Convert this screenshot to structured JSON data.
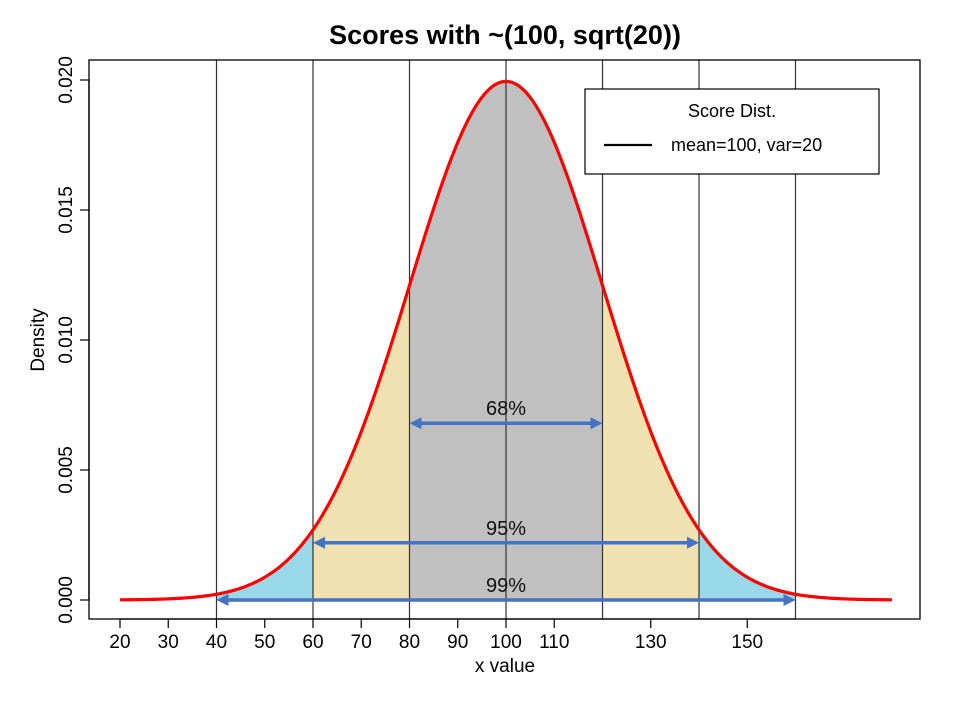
{
  "chart_data": {
    "type": "area",
    "title": "Scores with ~(100, sqrt(20))",
    "xlabel": "x value",
    "ylabel": "Density",
    "xlim": [
      20,
      180
    ],
    "ylim": [
      0,
      0.02
    ],
    "x_ticks": [
      20,
      30,
      40,
      50,
      60,
      70,
      80,
      90,
      100,
      110,
      130,
      150
    ],
    "y_ticks": [
      0.0,
      0.005,
      0.01,
      0.015,
      0.02
    ],
    "y_tick_labels": [
      "0.000",
      "0.005",
      "0.010",
      "0.015",
      "0.020"
    ],
    "vertical_lines": [
      40,
      60,
      80,
      100,
      120,
      140,
      160
    ],
    "grid": true,
    "curve": {
      "mean": 100,
      "sd": 20,
      "color": "#ff0000"
    },
    "series": [
      {
        "x": [
          20,
          30,
          40,
          50,
          60,
          70,
          80,
          90,
          100,
          110,
          120,
          130,
          140,
          150,
          160,
          170,
          180
        ],
        "values": [
          0.0001,
          0.0004,
          0.0009,
          0.0022,
          0.0027,
          0.0065,
          0.0121,
          0.0176,
          0.0199,
          0.0176,
          0.0121,
          0.0065,
          0.0027,
          0.0009,
          0.0002,
          0.0001,
          0.0001
        ]
      }
    ],
    "bands": [
      {
        "from": 40,
        "to": 60,
        "color": "#98d8e8"
      },
      {
        "from": 60,
        "to": 80,
        "color": "#f0e2b0"
      },
      {
        "from": 80,
        "to": 120,
        "color": "#c0c0c0"
      },
      {
        "from": 120,
        "to": 140,
        "color": "#f0e2b0"
      },
      {
        "from": 140,
        "to": 160,
        "color": "#98d8e8"
      }
    ],
    "intervals": [
      {
        "label": "68%",
        "from": 80,
        "to": 120,
        "y": 0.0068
      },
      {
        "label": "95%",
        "from": 60,
        "to": 140,
        "y": 0.0022
      },
      {
        "label": "99%",
        "from": 40,
        "to": 160,
        "y": 0.0
      }
    ],
    "interval_color": "#4472c4",
    "legend": {
      "title": "Score Dist.",
      "entries": [
        {
          "label": "mean=100, var=20",
          "color": "#000000"
        }
      ],
      "placement": "top-right"
    }
  }
}
